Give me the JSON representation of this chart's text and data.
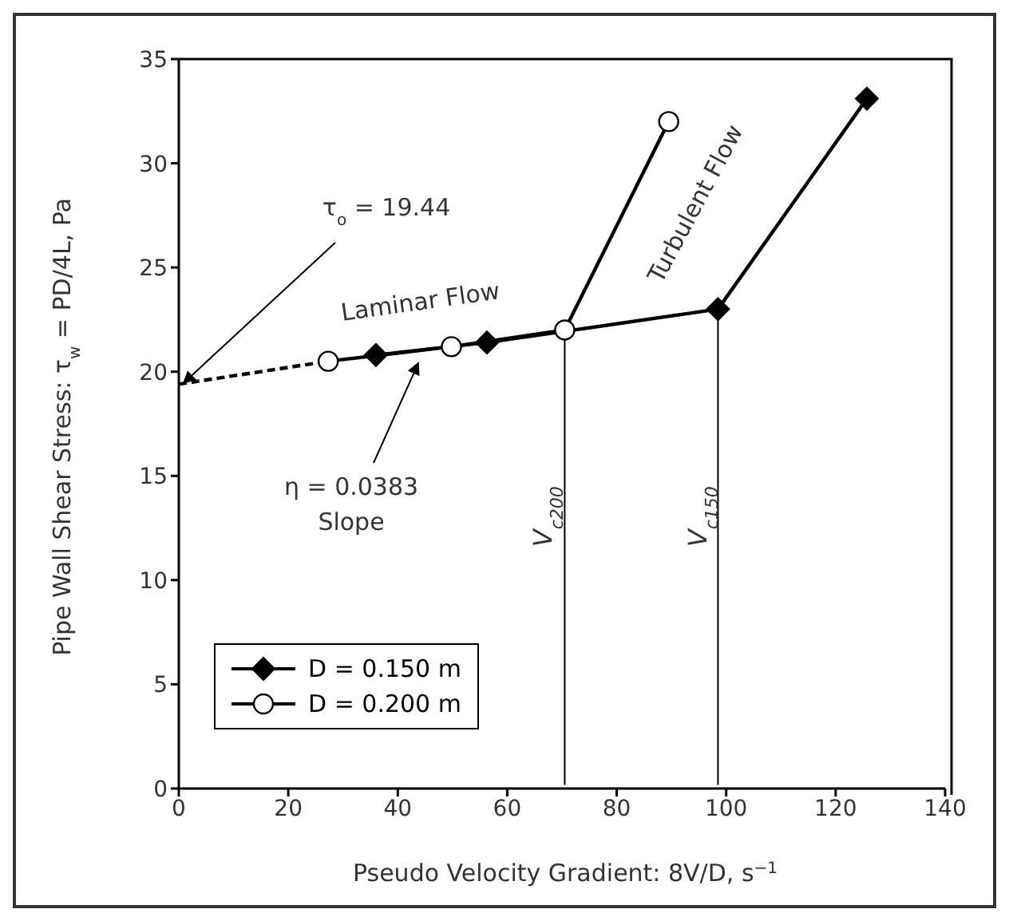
{
  "chart_data": {
    "type": "line",
    "xlabel": "Pseudo Velocity Gradient: 8V/D, s$^{−1}$",
    "ylabel": "Pipe Wall Shear Stress: τ$_{w}$ = PD/4L, Pa",
    "series": [
      {
        "name": "D = 0.150 m",
        "color": "#000000",
        "marker": "diamond",
        "x": [
          36.0,
          56.3,
          98.5,
          125.7
        ],
        "values": [
          20.8,
          21.4,
          23.0,
          33.1
        ]
      },
      {
        "name": "D = 0.200 m",
        "color": "#000000",
        "marker": "circle",
        "x": [
          27.3,
          49.8,
          70.5,
          89.5
        ],
        "values": [
          20.5,
          21.2,
          22.0,
          32.0
        ]
      },
      {
        "color": "#000000",
        "marker": "none",
        "line_style": "dashed",
        "x": [
          0,
          27.3
        ],
        "values": [
          19.4,
          20.5
        ]
      }
    ],
    "xlim": [
      0,
      140
    ],
    "xticks": [
      0,
      20,
      40,
      60,
      80,
      100,
      120,
      140
    ],
    "ylim": [
      0,
      35
    ],
    "yticks": [
      0,
      5,
      10,
      15,
      20,
      25,
      30,
      35
    ],
    "grid": false,
    "legend": "bottom left",
    "ref_lines": [
      {
        "axis": "x",
        "value": 70.5,
        "label": "V$_{c200}$"
      },
      {
        "axis": "x",
        "value": 98.5,
        "label": "V$_{c150}$"
      }
    ],
    "annotations": [
      {
        "text": "τ$_{o}$ = 19.44",
        "x": 0,
        "y": 19.44
      },
      "Laminar Flow",
      {
        "text": "η = 0.0383",
        "x": 43.4,
        "y": 21.0
      },
      "Slope",
      "Turbulent Flow"
    ]
  }
}
